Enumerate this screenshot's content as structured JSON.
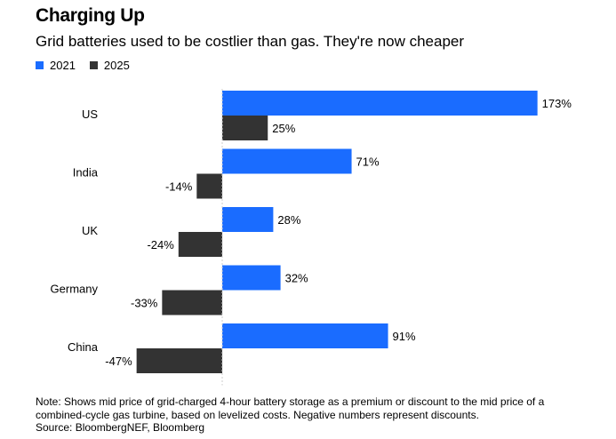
{
  "title": "Charging Up",
  "subtitle": "Grid batteries used to be costlier than gas. They're now cheaper",
  "legend": [
    {
      "label": "2021",
      "color": "#1a6cff"
    },
    {
      "label": "2025",
      "color": "#333333"
    }
  ],
  "chart_data": {
    "type": "bar",
    "orientation": "horizontal",
    "categories": [
      "US",
      "India",
      "UK",
      "Germany",
      "China"
    ],
    "series": [
      {
        "name": "2021",
        "color": "#1a6cff",
        "values": [
          173,
          71,
          28,
          32,
          91
        ],
        "labels": [
          "173%",
          "71%",
          "28%",
          "32%",
          "91%"
        ]
      },
      {
        "name": "2025",
        "color": "#333333",
        "values": [
          25,
          -14,
          -24,
          -33,
          -47
        ],
        "labels": [
          "25%",
          "-14%",
          "-24%",
          "-33%",
          "-47%"
        ]
      }
    ],
    "unit": "%",
    "xlim": [
      -50,
      175
    ],
    "grid": false,
    "legend_position": "top-left"
  },
  "note": {
    "line1": "Note: Shows mid price of grid-charged 4-hour battery storage as a premium or discount to the mid price of a",
    "line2": "combined-cycle gas turbine, based on levelized costs. Negative numbers represent discounts.",
    "line3": "Source: BloombergNEF, Bloomberg"
  }
}
